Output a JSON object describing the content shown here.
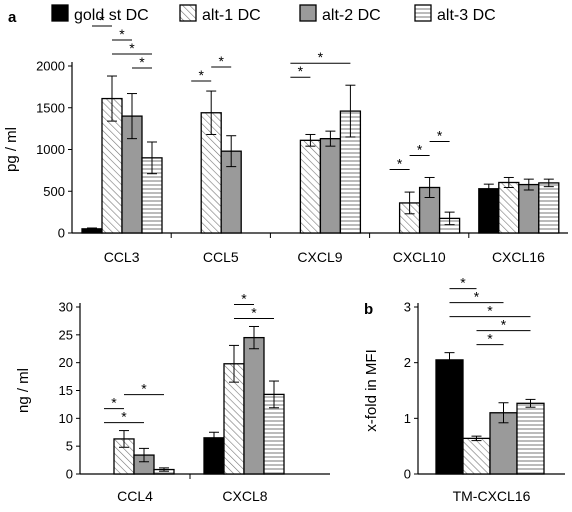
{
  "figure": {
    "panel_a_label": "a",
    "panel_b_label": "b",
    "sig_marker": "*"
  },
  "legend": [
    {
      "name": "gold st DC",
      "pattern": "solid-black"
    },
    {
      "name": "alt-1 DC",
      "pattern": "diagonal-hatch"
    },
    {
      "name": "alt-2 DC",
      "pattern": "solid-gray"
    },
    {
      "name": "alt-3 DC",
      "pattern": "horizontal-lines"
    }
  ],
  "colors": {
    "gold_st": "#000000",
    "alt2": "#9a9a9a",
    "hatch": "#777777",
    "axis": "#000000"
  },
  "chart_data": [
    {
      "id": "pgml",
      "type": "bar",
      "ylabel": "pg / ml",
      "ylim": [
        0,
        2000
      ],
      "yticks": [
        0,
        500,
        1000,
        1500,
        2000
      ],
      "categories": [
        "CCL3",
        "CCL5",
        "CXCL9",
        "CXCL10",
        "CXCL16"
      ],
      "series": [
        {
          "name": "gold st DC",
          "values": [
            50,
            null,
            null,
            null,
            530
          ],
          "errors": [
            10,
            null,
            null,
            null,
            55
          ]
        },
        {
          "name": "alt-1 DC",
          "values": [
            1610,
            1440,
            1110,
            360,
            605
          ],
          "errors": [
            270,
            260,
            70,
            130,
            60
          ]
        },
        {
          "name": "alt-2 DC",
          "values": [
            1400,
            980,
            1130,
            545,
            580
          ],
          "errors": [
            270,
            185,
            90,
            120,
            65
          ]
        },
        {
          "name": "alt-3 DC",
          "values": [
            900,
            null,
            1460,
            175,
            600
          ],
          "errors": [
            190,
            null,
            310,
            75,
            45
          ]
        }
      ],
      "significance": [
        {
          "category": 0,
          "pairs": [
            [
              1,
              3
            ],
            [
              1,
              2
            ],
            [
              0,
              1
            ],
            [
              2,
              3
            ]
          ]
        },
        {
          "category": 1,
          "pairs": [
            [
              0,
              1
            ],
            [
              1,
              2
            ]
          ]
        },
        {
          "category": 2,
          "pairs": [
            [
              0,
              3
            ],
            [
              0,
              1
            ]
          ]
        },
        {
          "category": 3,
          "pairs": [
            [
              0,
              1
            ],
            [
              1,
              2
            ],
            [
              2,
              3
            ]
          ]
        }
      ]
    },
    {
      "id": "ngml",
      "type": "bar",
      "ylabel": "ng / ml",
      "ylim": [
        0,
        30
      ],
      "yticks": [
        0,
        5,
        10,
        15,
        20,
        25,
        30
      ],
      "categories": [
        "CCL4",
        "CXCL8"
      ],
      "series": [
        {
          "name": "gold st DC",
          "values": [
            null,
            6.5
          ],
          "errors": [
            null,
            1.0
          ]
        },
        {
          "name": "alt-1 DC",
          "values": [
            6.3,
            19.8
          ],
          "errors": [
            1.5,
            3.3
          ]
        },
        {
          "name": "alt-2 DC",
          "values": [
            3.4,
            24.5
          ],
          "errors": [
            1.2,
            2.0
          ]
        },
        {
          "name": "alt-3 DC",
          "values": [
            0.8,
            14.3
          ],
          "errors": [
            0.3,
            2.4
          ]
        }
      ],
      "significance": [
        {
          "category": 0,
          "pairs": [
            [
              0,
              1
            ],
            [
              0,
              2
            ],
            [
              1,
              3
            ]
          ]
        },
        {
          "category": 1,
          "pairs": [
            [
              1,
              2
            ],
            [
              1,
              3
            ]
          ]
        }
      ]
    },
    {
      "id": "mfi",
      "type": "bar",
      "ylabel": "x-fold in MFI",
      "ylim": [
        0,
        3
      ],
      "yticks": [
        0,
        1,
        2,
        3
      ],
      "categories": [
        "TM-CXCL16"
      ],
      "series": [
        {
          "name": "gold st DC",
          "values": [
            2.05
          ],
          "errors": [
            0.13
          ]
        },
        {
          "name": "alt-1 DC",
          "values": [
            0.64
          ],
          "errors": [
            0.04
          ]
        },
        {
          "name": "alt-2 DC",
          "values": [
            1.1
          ],
          "errors": [
            0.18
          ]
        },
        {
          "name": "alt-3 DC",
          "values": [
            1.27
          ],
          "errors": [
            0.07
          ]
        }
      ],
      "significance": [
        {
          "category": 0,
          "pairs": [
            [
              0,
              3
            ],
            [
              0,
              2
            ],
            [
              0,
              1
            ],
            [
              1,
              3
            ],
            [
              1,
              2
            ]
          ]
        }
      ]
    }
  ]
}
